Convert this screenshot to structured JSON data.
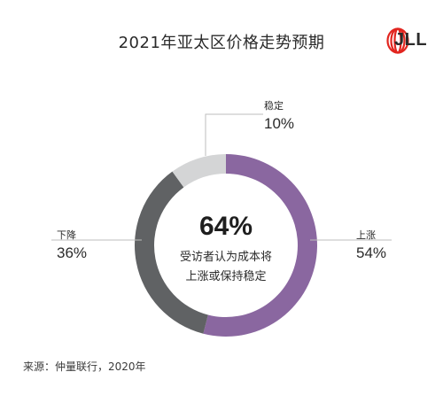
{
  "title": "2021年亚太区价格走势预期",
  "logo": {
    "text": "JLL",
    "brand_color": "#e2251f"
  },
  "chart_data": {
    "type": "pie",
    "variant": "donut",
    "slices": [
      {
        "label": "上涨",
        "value": 54,
        "display": "54%",
        "color": "#8a67a0"
      },
      {
        "label": "下降",
        "value": 36,
        "display": "36%",
        "color": "#606264"
      },
      {
        "label": "稳定",
        "value": 10,
        "display": "10%",
        "color": "#d4d5d6"
      }
    ],
    "center": {
      "value": "64%",
      "line1": "受访者认为成本将",
      "line2": "上涨或保持稳定"
    }
  },
  "source": "来源：仲量联行，2020年"
}
